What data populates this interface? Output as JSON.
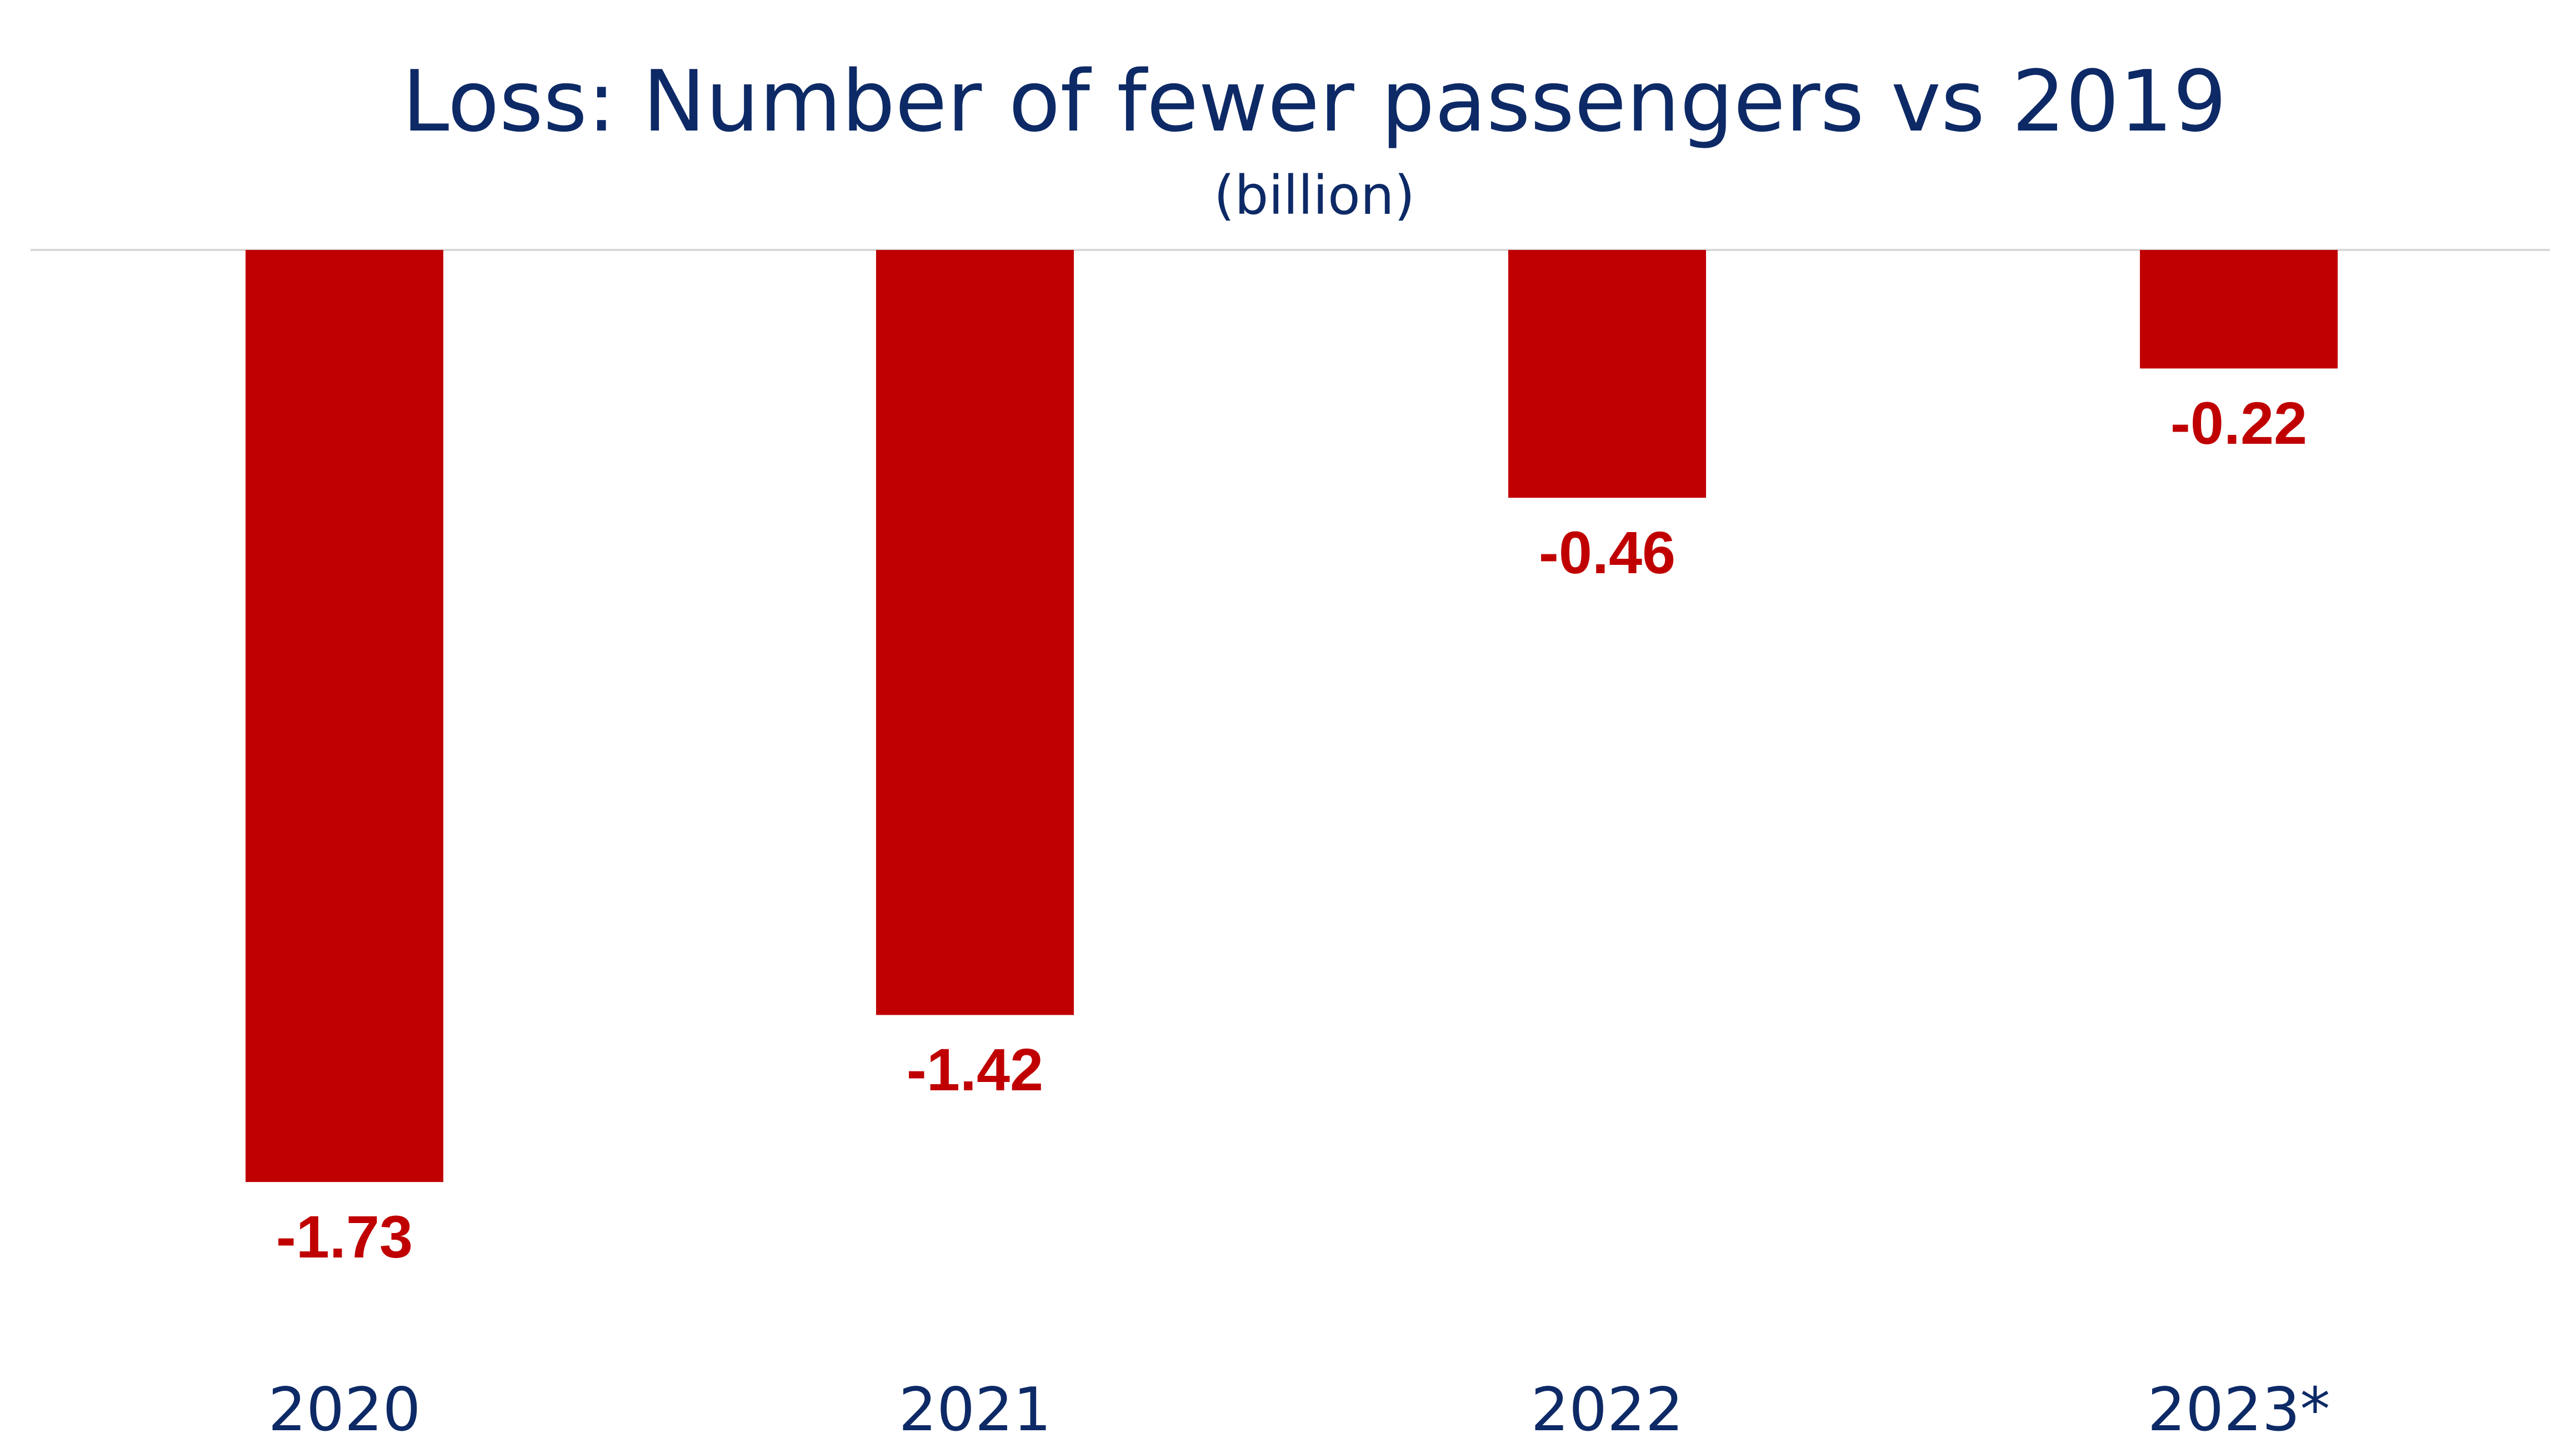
{
  "chart_data": {
    "type": "bar",
    "title": "Loss: Number of fewer passengers vs 2019",
    "subtitle": "(billion)",
    "categories": [
      "2020",
      "2021",
      "2022",
      "2023*"
    ],
    "values": [
      -1.73,
      -1.42,
      -0.46,
      -0.22
    ],
    "value_labels": [
      "-1.73",
      "-1.42",
      "-0.46",
      "-0.22"
    ],
    "ylim": [
      -1.73,
      0
    ],
    "grid": false,
    "legend": "none",
    "colors": {
      "bar": "#c00000",
      "value_label": "#c00000",
      "text": "#0d2a66",
      "baseline": "#d9d9d9"
    }
  }
}
